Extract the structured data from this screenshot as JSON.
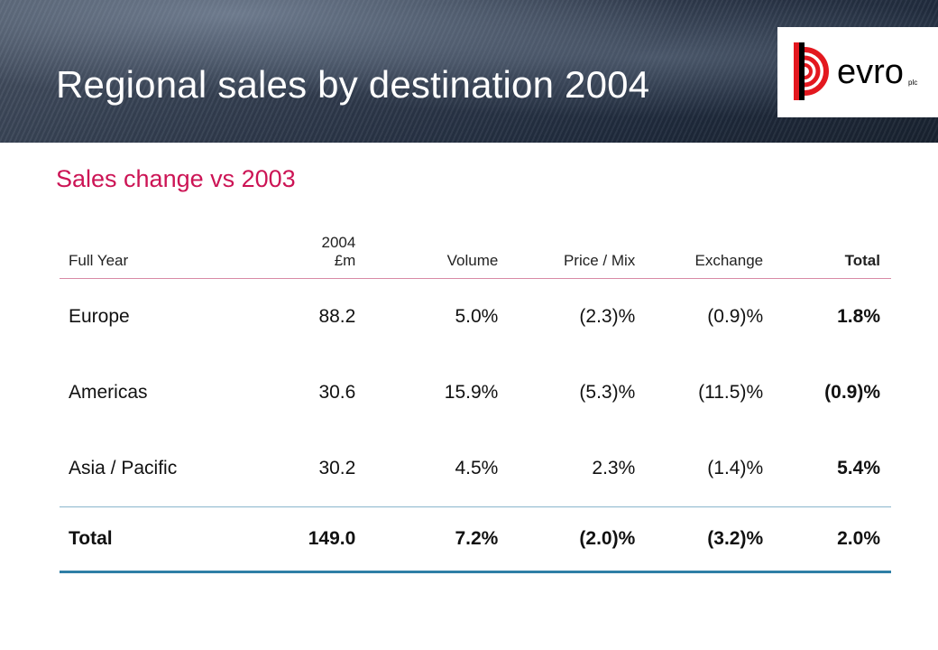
{
  "slide": {
    "title": "Regional sales by destination 2004",
    "subtitle": "Sales change vs 2003",
    "logo_text": "evro",
    "logo_suffix": "plc"
  },
  "table": {
    "headers": {
      "region": "Full Year",
      "sales_line1": "2004",
      "sales_line2": "£m",
      "volume": "Volume",
      "price_mix": "Price / Mix",
      "exchange": "Exchange",
      "total": "Total"
    },
    "rows": [
      {
        "region": "Europe",
        "sales": "88.2",
        "volume": "5.0%",
        "price_mix": "(2.3)%",
        "exchange": "(0.9)%",
        "total": "1.8%"
      },
      {
        "region": "Americas",
        "sales": "30.6",
        "volume": "15.9%",
        "price_mix": "(5.3)%",
        "exchange": "(11.5)%",
        "total": "(0.9)%"
      },
      {
        "region": "Asia / Pacific",
        "sales": "30.2",
        "volume": "4.5%",
        "price_mix": "2.3%",
        "exchange": "(1.4)%",
        "total": "5.4%"
      }
    ],
    "total_row": {
      "region": "Total",
      "sales": "149.0",
      "volume": "7.2%",
      "price_mix": "(2.0)%",
      "exchange": "(3.2)%",
      "total": "2.0%"
    }
  },
  "colors": {
    "subtitle": "#cc1455",
    "logo_red": "#e3181f",
    "rule_pink": "#d88aa6",
    "rule_blue": "#2f7fa6"
  }
}
